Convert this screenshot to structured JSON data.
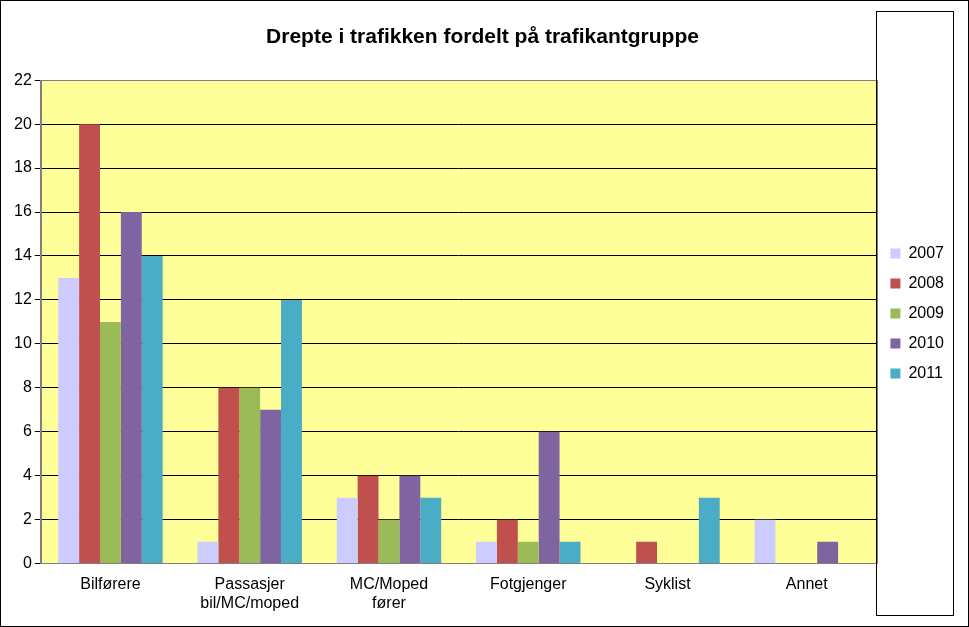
{
  "chart_data": {
    "type": "bar",
    "title": "Drepte i trafikken fordelt på trafikantgruppe",
    "categories": [
      "Bilførere",
      [
        "Passasjer",
        "bil/MC/moped"
      ],
      [
        "MC/Moped",
        "fører"
      ],
      "Fotgjenger",
      "Syklist",
      "Annet"
    ],
    "series": [
      {
        "name": "2007",
        "color": "#ccccff",
        "values": [
          13,
          1,
          3,
          1,
          0,
          2
        ]
      },
      {
        "name": "2008",
        "color": "#c0504d",
        "values": [
          20,
          8,
          4,
          2,
          1,
          0
        ]
      },
      {
        "name": "2009",
        "color": "#9bbb59",
        "values": [
          11,
          8,
          2,
          1,
          0,
          0
        ]
      },
      {
        "name": "2010",
        "color": "#8064a2",
        "values": [
          16,
          7,
          4,
          6,
          0,
          1
        ]
      },
      {
        "name": "2011",
        "color": "#4bacc6",
        "values": [
          14,
          12,
          3,
          1,
          3,
          0
        ]
      }
    ],
    "ylim": [
      0,
      22
    ],
    "yticks": [
      0,
      2,
      4,
      6,
      8,
      10,
      12,
      14,
      16,
      18,
      20,
      22
    ],
    "grid": true,
    "legend": "right"
  }
}
